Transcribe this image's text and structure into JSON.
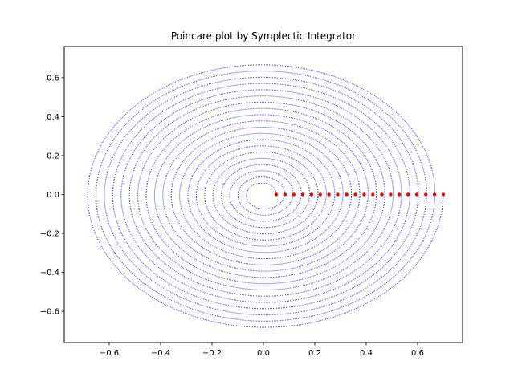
{
  "chart_data": {
    "type": "scatter",
    "title": "Poincare plot by Symplectic Integrator",
    "xlabel": "",
    "ylabel": "",
    "xlim": [
      -0.775,
      0.775
    ],
    "ylim": [
      -0.76,
      0.76
    ],
    "xticks": [
      -0.6,
      -0.4,
      -0.2,
      0.0,
      0.2,
      0.4,
      0.6
    ],
    "xtick_labels": [
      "−0.6",
      "−0.4",
      "−0.2",
      "0.0",
      "0.2",
      "0.4",
      "0.6"
    ],
    "yticks": [
      -0.6,
      -0.4,
      -0.2,
      0.0,
      0.2,
      0.4,
      0.6
    ],
    "ytick_labels": [
      "−0.6",
      "−0.4",
      "−0.2",
      "0.0",
      "0.2",
      "0.4",
      "0.6"
    ],
    "grid": false,
    "series": [
      {
        "style": "small dots forming spiral / near-elliptical rings",
        "color": "#0000ff",
        "x_radius_range": [
          0.05,
          0.7
        ],
        "y_radius_range": [
          0.05,
          0.69
        ],
        "ring_count": 20
      },
      {
        "style": "large dots (initial conditions)",
        "color": "#ff0000",
        "x": [
          0.05,
          0.084,
          0.118,
          0.153,
          0.187,
          0.221,
          0.255,
          0.289,
          0.324,
          0.358,
          0.392,
          0.426,
          0.461,
          0.495,
          0.529,
          0.563,
          0.597,
          0.632,
          0.666,
          0.7
        ],
        "y": [
          0,
          0,
          0,
          0,
          0,
          0,
          0,
          0,
          0,
          0,
          0,
          0,
          0,
          0,
          0,
          0,
          0,
          0,
          0,
          0
        ]
      }
    ]
  }
}
